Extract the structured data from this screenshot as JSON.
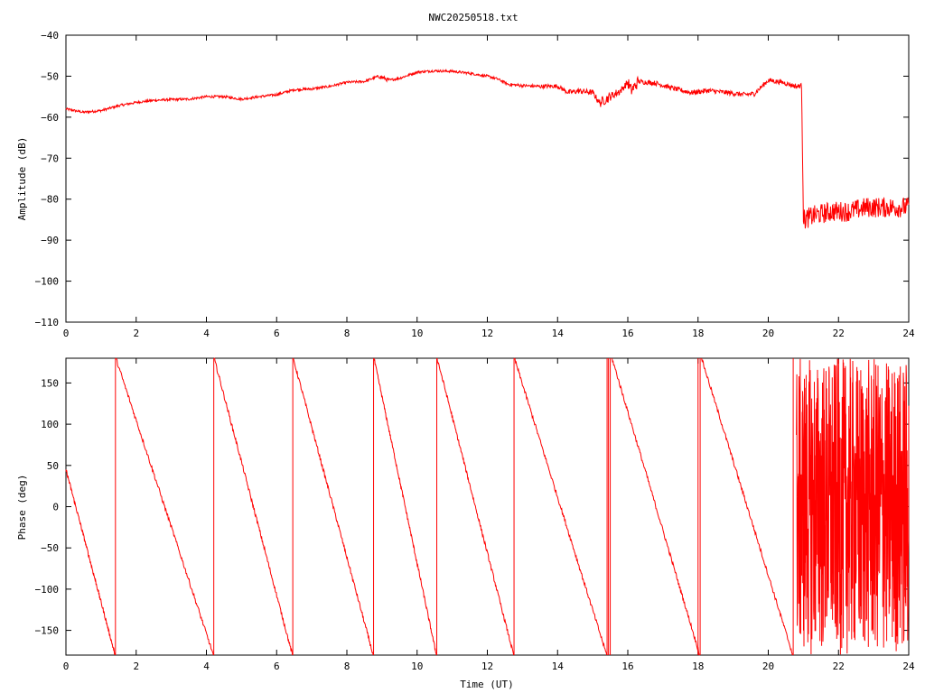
{
  "title": "NWC20250518.txt",
  "colors": {
    "trace": "#ff0000",
    "axes": "#000000",
    "background": "#ffffff"
  },
  "chart_data": [
    {
      "type": "line",
      "ylabel": "Amplitude (dB)",
      "xlabel": "",
      "xlim": [
        0,
        24
      ],
      "ylim": [
        -110,
        -40
      ],
      "xticks": [
        0,
        2,
        4,
        6,
        8,
        10,
        12,
        14,
        16,
        18,
        20,
        22,
        24
      ],
      "yticks": [
        -110,
        -100,
        -90,
        -80,
        -70,
        -60,
        -50,
        -40
      ],
      "grid": false,
      "series": [
        {
          "color": "#ff0000",
          "x": [
            0,
            0.5,
            1,
            1.5,
            2,
            2.5,
            3,
            3.5,
            4,
            4.5,
            5,
            5.5,
            6,
            6.5,
            7,
            7.5,
            8,
            8.5,
            8.9,
            9.2,
            9.5,
            10,
            10.5,
            11,
            11.5,
            12,
            12.3,
            12.6,
            13,
            13.5,
            14,
            14.3,
            14.6,
            15,
            15.2,
            15.5,
            15.8,
            16,
            16.1,
            16.3,
            16.8,
            17.3,
            17.8,
            18.3,
            18.8,
            19.3,
            19.6,
            20,
            20.4,
            20.8,
            20.95,
            21.0,
            21.3,
            21.8,
            22.3,
            22.8,
            23.3,
            23.8,
            24
          ],
          "y": [
            -58,
            -58.8,
            -58.4,
            -57.2,
            -56.4,
            -55.9,
            -55.7,
            -55.6,
            -55,
            -55,
            -55.6,
            -55.0,
            -54.5,
            -53.3,
            -53.1,
            -52.5,
            -51.5,
            -51.3,
            -50.0,
            -51.0,
            -50.5,
            -49.0,
            -48.7,
            -48.8,
            -49.3,
            -50.0,
            -50.7,
            -52.0,
            -52.3,
            -52.5,
            -52.4,
            -54.0,
            -53.6,
            -54.0,
            -56.5,
            -55.0,
            -53.5,
            -51.5,
            -53.5,
            -51.3,
            -51.7,
            -53.0,
            -54.0,
            -53.5,
            -54.0,
            -54.5,
            -54.3,
            -51.0,
            -51.5,
            -52.5,
            -52.3,
            -85,
            -84,
            -83,
            -83,
            -82,
            -82,
            -82,
            -82
          ],
          "noise": [
            0.3,
            0.3,
            0.3,
            0.3,
            0.3,
            0.3,
            0.3,
            0.3,
            0.3,
            0.3,
            0.3,
            0.3,
            0.3,
            0.3,
            0.3,
            0.3,
            0.3,
            0.3,
            0.5,
            0.3,
            0.3,
            0.3,
            0.3,
            0.3,
            0.3,
            0.3,
            0.3,
            0.4,
            0.4,
            0.5,
            0.5,
            0.7,
            0.7,
            0.7,
            1.2,
            1.0,
            0.8,
            1.5,
            1.5,
            0.6,
            0.6,
            0.6,
            0.6,
            0.6,
            0.6,
            0.6,
            0.6,
            0.6,
            0.6,
            0.6,
            0.6,
            2.5,
            2.5,
            2.5,
            2.5,
            2.5,
            2.5,
            2.5,
            2.5
          ]
        }
      ]
    },
    {
      "type": "line",
      "ylabel": "Phase (deg)",
      "xlabel": "Time (UT)",
      "xlim": [
        0,
        24
      ],
      "ylim": [
        -180,
        180
      ],
      "xticks": [
        0,
        2,
        4,
        6,
        8,
        10,
        12,
        14,
        16,
        18,
        20,
        22,
        24
      ],
      "yticks": [
        -150,
        -100,
        -50,
        0,
        50,
        100,
        150
      ],
      "grid": false,
      "series": [
        {
          "color": "#ff0000",
          "ramps": [
            {
              "x": [
                0,
                1.4
              ],
              "y": [
                45,
                -180
              ]
            },
            {
              "x": [
                1.42,
                4.2
              ],
              "y": [
                180,
                -180
              ]
            },
            {
              "x": [
                4.22,
                6.45
              ],
              "y": [
                180,
                -180
              ]
            },
            {
              "x": [
                6.47,
                8.75
              ],
              "y": [
                180,
                -180
              ]
            },
            {
              "x": [
                8.77,
                10.55
              ],
              "y": [
                180,
                -180
              ]
            },
            {
              "x": [
                10.57,
                12.75
              ],
              "y": [
                180,
                -180
              ]
            },
            {
              "x": [
                12.77,
                15.4
              ],
              "y": [
                180,
                -180
              ]
            },
            {
              "x": [
                15.55,
                18.05
              ],
              "y": [
                180,
                -180
              ]
            },
            {
              "x": [
                18.1,
                20.7
              ],
              "y": [
                180,
                -180
              ]
            }
          ],
          "noisy_region": {
            "x": [
              20.8,
              24
            ],
            "y": [
              -180,
              180
            ]
          }
        }
      ]
    }
  ]
}
